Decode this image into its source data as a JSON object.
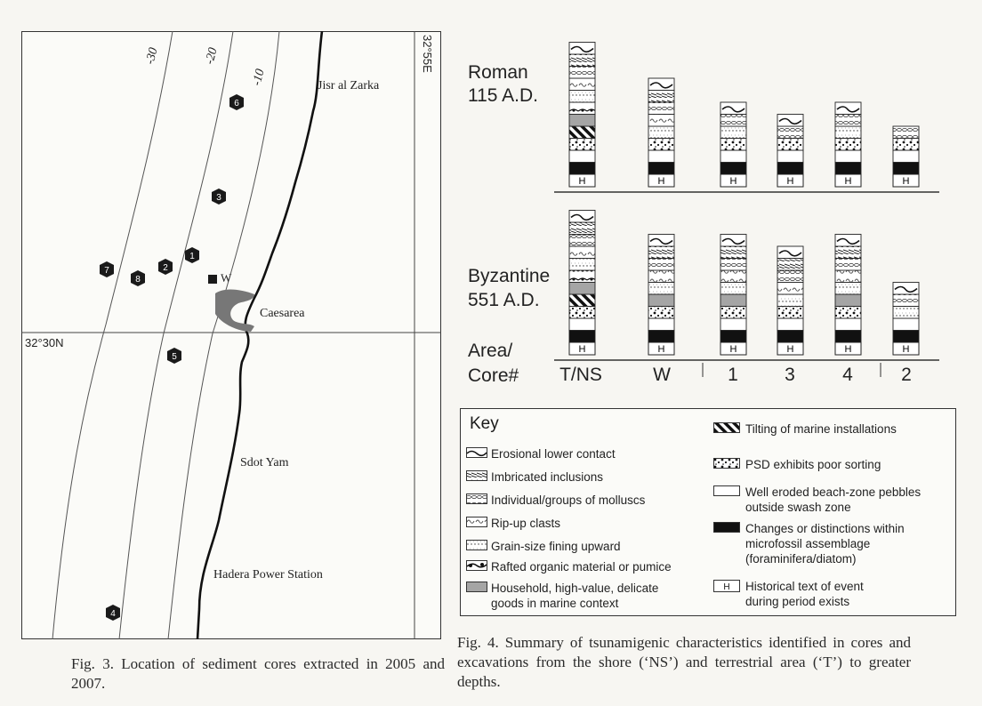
{
  "map": {
    "places": {
      "jisr": "Jisr al Zarka",
      "caesarea": "Caesarea",
      "sdot": "Sdot Yam",
      "hadera": "Hadera Power Station"
    },
    "lat_label": "32°30N",
    "lon_label": "32°55E",
    "contours": [
      "-30",
      "-20",
      "-10"
    ],
    "cores": [
      "6",
      "3",
      "1",
      "2",
      "8",
      "7",
      "5",
      "4"
    ],
    "site_w": "W"
  },
  "fig3_caption": "Fig. 3. Location of sediment cores extracted in 2005 and 2007.",
  "fig4": {
    "period1": {
      "name": "Roman",
      "date": "115 A.D."
    },
    "period2": {
      "name": "Byzantine",
      "date": "551 A.D."
    },
    "area_label_1": "Area/",
    "area_label_2": "Core#",
    "columns": [
      "T/NS",
      "W",
      "1",
      "3",
      "4",
      "2"
    ],
    "historical_mark": "H"
  },
  "key": {
    "title": "Key",
    "items": [
      "Erosional lower contact",
      "Imbricated inclusions",
      "Individual/groups of molluscs",
      "Rip-up clasts",
      "Grain-size fining upward",
      "Rafted organic material or pumice",
      "Household, high-value, delicate",
      "goods in marine context",
      "Tilting of marine installations",
      "PSD exhibits poor sorting",
      "Well eroded beach-zone pebbles",
      "outside swash zone",
      "Changes or distinctions within",
      "microfossil assemblage",
      "(foraminifera/diatom)",
      "Historical text of event",
      "during period exists"
    ]
  },
  "fig4_caption": "Fig. 4. Summary of tsunamigenic characteristics identified in cores and excavations from the shore (‘NS’) and terrestrial area (‘T’) to greater depths."
}
